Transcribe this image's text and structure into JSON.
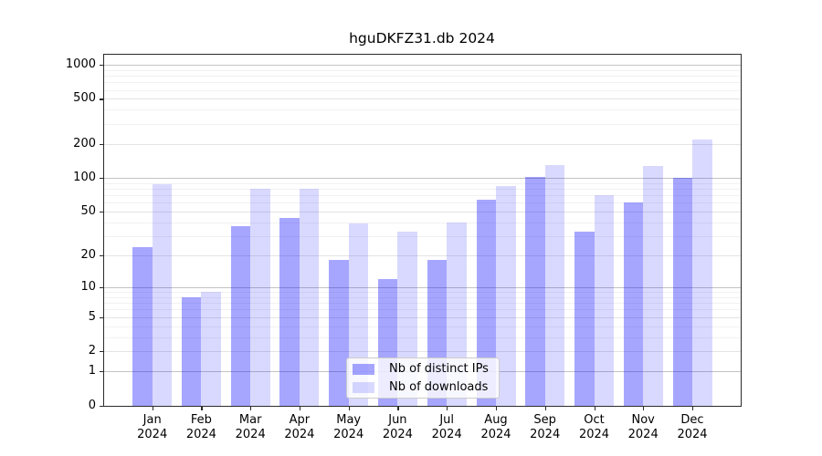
{
  "chart_data": {
    "type": "bar",
    "title": "hguDKFZ31.db 2024",
    "categories": [
      "Jan",
      "Feb",
      "Mar",
      "Apr",
      "May",
      "Jun",
      "Jul",
      "Aug",
      "Sep",
      "Oct",
      "Nov",
      "Dec"
    ],
    "year_label": "2024",
    "series": [
      {
        "name": "Nb of distinct IPs",
        "values": [
          24,
          8,
          37,
          44,
          18,
          12,
          18,
          64,
          101,
          33,
          60,
          100
        ],
        "color": "rgba(0,0,255,0.35)"
      },
      {
        "name": "Nb of downloads",
        "values": [
          88,
          9,
          80,
          80,
          39,
          33,
          40,
          85,
          130,
          70,
          128,
          220
        ],
        "color": "rgba(0,0,255,0.15)"
      }
    ],
    "xlabel": "",
    "ylabel": "",
    "yscale": "log(1+x)",
    "y_ticks": [
      0,
      1,
      2,
      5,
      10,
      20,
      50,
      100,
      200,
      500,
      1000
    ],
    "ylim": [
      0,
      1200
    ],
    "grid": true,
    "legend_position": "lower center"
  }
}
